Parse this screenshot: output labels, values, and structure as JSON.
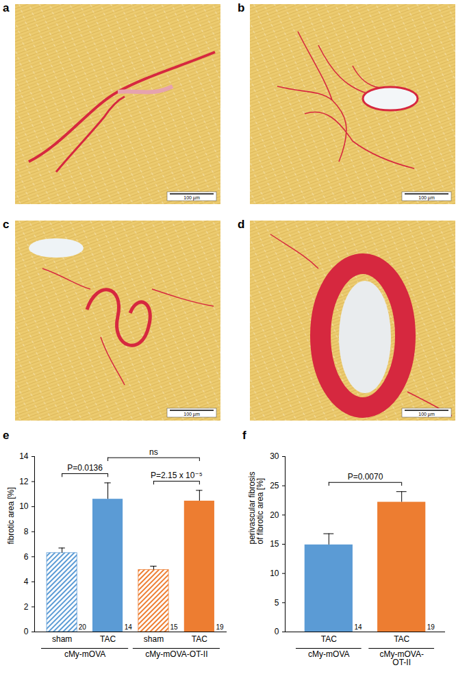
{
  "images": [
    {
      "panel": "a",
      "scale_bar": "100 µm"
    },
    {
      "panel": "b",
      "scale_bar": "100 µm"
    },
    {
      "panel": "c",
      "scale_bar": "100 µm"
    },
    {
      "panel": "d",
      "scale_bar": "100 µm"
    }
  ],
  "chart_data": [
    {
      "type": "bar",
      "panel": "e",
      "ylabel": "fibrotic area [%]",
      "categories": [
        "sham",
        "TAC",
        "sham",
        "TAC"
      ],
      "values": [
        6.3,
        10.6,
        4.95,
        10.45
      ],
      "errors": [
        0.4,
        1.3,
        0.3,
        0.85
      ],
      "n_labels": [
        20,
        14,
        15,
        19
      ],
      "colors": [
        "#5b9bd5",
        "#5b9bd5",
        "#ed7d31",
        "#ed7d31"
      ],
      "line_styles": [
        "hatched",
        "solid",
        "hatched",
        "solid"
      ],
      "groups": [
        {
          "label": "cMy-mOVA",
          "size": 2
        },
        {
          "label": "cMy-mOVA-OT-II",
          "size": 2
        }
      ],
      "annotations": [
        {
          "from": 0,
          "to": 1,
          "text": "P=0.0136"
        },
        {
          "from": 1,
          "to": 3,
          "text": "ns"
        },
        {
          "from": 2,
          "to": 3,
          "text": "P=2.15 x 10⁻⁵"
        }
      ],
      "ylim": [
        0,
        14
      ],
      "yticks": [
        0,
        2,
        4,
        6,
        8,
        10,
        12,
        14
      ],
      "grid": false
    },
    {
      "type": "bar",
      "panel": "f",
      "ylabel": "perivascular fibrosis\nof fibrotic area [%]",
      "categories": [
        "TAC",
        "TAC"
      ],
      "values": [
        14.9,
        22.2
      ],
      "errors": [
        1.9,
        1.8
      ],
      "n_labels": [
        14,
        19
      ],
      "colors": [
        "#5b9bd5",
        "#ed7d31"
      ],
      "line_styles": [
        "solid",
        "solid"
      ],
      "groups": [
        {
          "label": "cMy-mOVA",
          "size": 1
        },
        {
          "label": "cMy-mOVA-\nOT-II",
          "size": 1
        }
      ],
      "annotations": [
        {
          "from": 0,
          "to": 1,
          "text": "P=0.0070"
        }
      ],
      "ylim": [
        0,
        30
      ],
      "yticks": [
        0,
        5,
        10,
        15,
        20,
        25,
        30
      ],
      "grid": false
    }
  ]
}
